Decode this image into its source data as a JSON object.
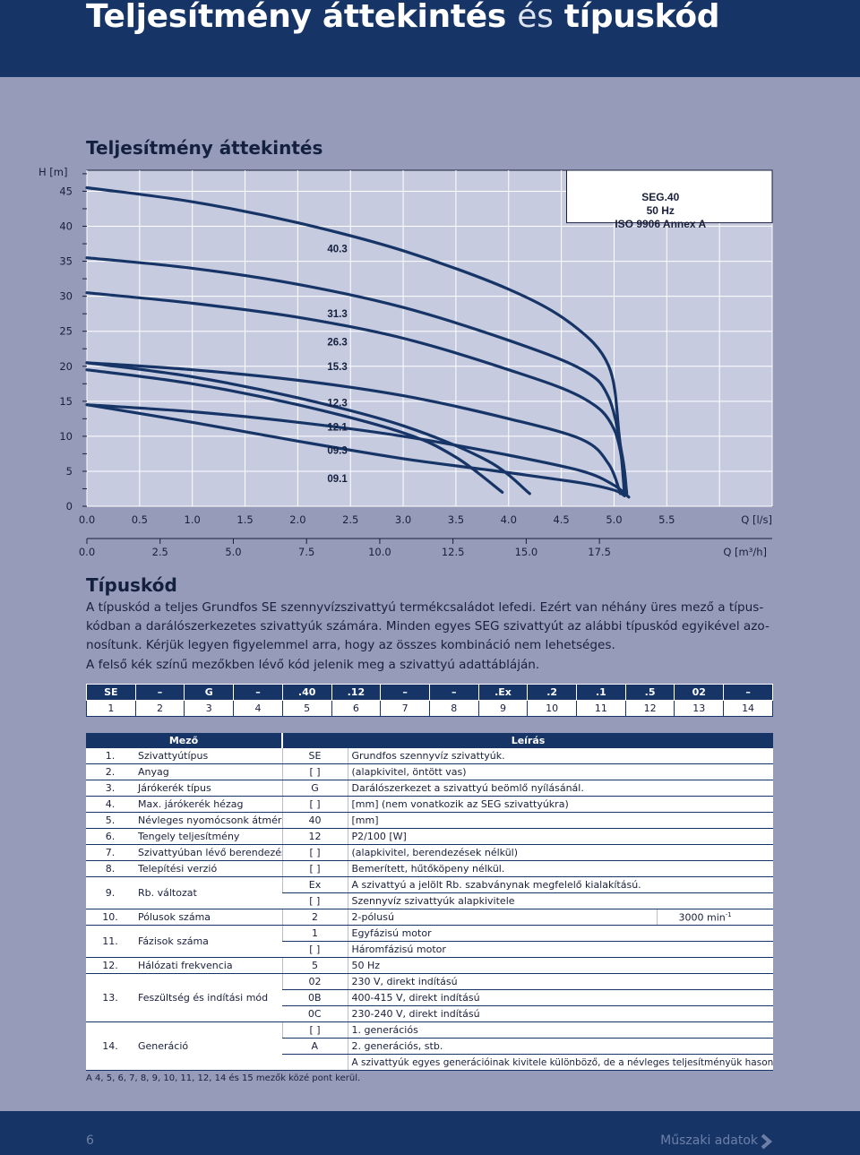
{
  "header": {
    "title_bold_1": "Teljesítmény áttekintés",
    "title_light": "és",
    "title_bold_2": "típuskód"
  },
  "performance": {
    "heading": "Teljesítmény áttekintés"
  },
  "chart_data": {
    "type": "line",
    "title": "",
    "ylabel": "H [m]",
    "xlabel": "Q [l/s]",
    "xlabel2": "Q [m³/h]",
    "ylim": [
      0,
      48
    ],
    "xlim": [
      0,
      6.5
    ],
    "y_ticks": [
      "0",
      "5",
      "10",
      "15",
      "20",
      "25",
      "30",
      "35",
      "40",
      "45"
    ],
    "x_ticks": [
      "0.0",
      "0.5",
      "1.0",
      "1.5",
      "2.0",
      "2.5",
      "3.0",
      "3.5",
      "4.0",
      "4.5",
      "5.0",
      "5.5"
    ],
    "x2_ticks": [
      "0.0",
      "2.5",
      "5.0",
      "7.5",
      "10.0",
      "12.5",
      "15.0",
      "17.5"
    ],
    "grid": true,
    "legend_box": [
      "SEG.40",
      "50 Hz",
      "ISO 9906 Annex A"
    ],
    "series": [
      {
        "name": "40.3",
        "x": [
          0,
          1,
          2,
          3,
          4,
          4.6,
          4.95,
          5.05,
          5.1
        ],
        "y": [
          45.5,
          43.5,
          40.5,
          36.5,
          31,
          26,
          20,
          10,
          1.5
        ]
      },
      {
        "name": "31.3",
        "x": [
          0,
          1,
          2,
          3,
          4,
          4.7,
          4.95,
          5.08,
          5.12
        ],
        "y": [
          35.5,
          34,
          31.7,
          28.4,
          23.7,
          19.5,
          15.5,
          7,
          1.8
        ]
      },
      {
        "name": "26.3",
        "x": [
          0,
          1,
          2,
          3,
          4,
          4.7,
          5.0,
          5.12
        ],
        "y": [
          30.5,
          29,
          27,
          24,
          19.5,
          15.5,
          11,
          2
        ]
      },
      {
        "name": "15.3",
        "x": [
          0,
          1,
          2,
          3,
          4,
          4.7,
          4.95,
          5.06
        ],
        "y": [
          20.5,
          19.5,
          18,
          15.8,
          12.5,
          9.5,
          6,
          1.8
        ]
      },
      {
        "name": "12.3",
        "x": [
          0,
          1,
          2,
          3,
          3.8,
          4.2
        ],
        "y": [
          20.5,
          18.5,
          15.5,
          11.5,
          6.5,
          1.8
        ]
      },
      {
        "name": "12.1",
        "x": [
          0,
          1,
          2,
          3,
          4,
          4.7,
          5.0,
          5.14
        ],
        "y": [
          14.5,
          13.5,
          12,
          10,
          7.3,
          5,
          3,
          1.3
        ]
      },
      {
        "name": "09.3",
        "x": [
          0,
          1,
          2,
          3,
          3.5,
          3.94
        ],
        "y": [
          19.5,
          17.5,
          14.5,
          10.5,
          7,
          2
        ]
      },
      {
        "name": "09.1",
        "x": [
          0,
          1,
          2,
          3,
          4,
          4.7,
          5.0,
          5.1
        ],
        "y": [
          14.5,
          12,
          9.3,
          6.8,
          4.8,
          3.3,
          2.3,
          1.5
        ]
      }
    ],
    "curve_labels": [
      "40.3",
      "31.3",
      "26.3",
      "15.3",
      "12.3",
      "12.1",
      "09.3",
      "09.1"
    ]
  },
  "typecode": {
    "heading": "Típuskód",
    "paragraph": [
      "A típuskód a teljes Grundfos SE szennyvízszivattyú termékcsaládot lefedi. Ezért van néhány üres mező a típus-",
      "kódban a darálószerkezetes szivattyúk számára. Minden egyes SEG szivattyút az alábbi típuskód egyikével azo-",
      "nosítunk. Kérjük legyen figyelemmel arra, hogy az összes kombináció nem lehetséges.",
      "A felső kék színű mezőkben lévő kód jelenik meg a szivattyú adattábláján."
    ],
    "codes": [
      "SE",
      "–",
      "G",
      "–",
      ".40",
      ".12",
      "–",
      "–",
      ".Ex",
      ".2",
      ".1",
      ".5",
      "02",
      "–"
    ],
    "numbers": [
      "1",
      "2",
      "3",
      "4",
      "5",
      "6",
      "7",
      "8",
      "9",
      "10",
      "11",
      "12",
      "13",
      "14"
    ]
  },
  "fields_table": {
    "header_field": "Mező",
    "header_desc": "Leírás",
    "rows": [
      {
        "no": "1.",
        "name": "Szivattyútípus",
        "lines": [
          {
            "code": "SE",
            "desc": "Grundfos szennyvíz szivattyúk."
          }
        ]
      },
      {
        "no": "2.",
        "name": "Anyag",
        "lines": [
          {
            "code": "[ ]",
            "desc": "(alapkivitel, öntött vas)"
          }
        ]
      },
      {
        "no": "3.",
        "name": "Járókerék típus",
        "lines": [
          {
            "code": "G",
            "desc": "Darálószerkezet a szivattyú beömlő nyílásánál."
          }
        ]
      },
      {
        "no": "4.",
        "name": "Max. járókerék hézag",
        "lines": [
          {
            "code": "[ ]",
            "desc": "[mm] (nem vonatkozik az SEG szivattyúkra)"
          }
        ]
      },
      {
        "no": "5.",
        "name": "Névleges nyomócsonk átmérő",
        "lines": [
          {
            "code": "40",
            "desc": "[mm]"
          }
        ]
      },
      {
        "no": "6.",
        "name": "Tengely teljesítmény",
        "lines": [
          {
            "code": "12",
            "desc": "P2/100 [W]"
          }
        ]
      },
      {
        "no": "7.",
        "name": "Szivattyúban lévő berendezés",
        "lines": [
          {
            "code": "[ ]",
            "desc": "(alapkivitel, berendezések nélkül)"
          }
        ]
      },
      {
        "no": "8.",
        "name": "Telepítési verzió",
        "lines": [
          {
            "code": "[ ]",
            "desc": "Bemerített, hűtőköpeny nélkül."
          }
        ]
      },
      {
        "no": "9.",
        "name": "Rb. változat",
        "lines": [
          {
            "code": "Ex",
            "desc": "A szivattyú a jelölt Rb. szabványnak megfelelő kialakítású."
          },
          {
            "code": "[ ]",
            "desc": "Szennyvíz szivattyúk alapkivitele"
          }
        ]
      },
      {
        "no": "10.",
        "name": "Pólusok száma",
        "lines": [
          {
            "code": "2",
            "desc": "2-pólusú",
            "extra": "3000 min"
          }
        ]
      },
      {
        "no": "11.",
        "name": "Fázisok száma",
        "lines": [
          {
            "code": "1",
            "desc": "Egyfázisú motor"
          },
          {
            "code": "[ ]",
            "desc": "Háromfázisú motor"
          }
        ]
      },
      {
        "no": "12.",
        "name": "Hálózati frekvencia",
        "lines": [
          {
            "code": "5",
            "desc": "50 Hz"
          }
        ]
      },
      {
        "no": "13.",
        "name": "Feszültség és indítási mód",
        "lines": [
          {
            "code": "02",
            "desc": "230 V, direkt indítású"
          },
          {
            "code": "0B",
            "desc": "400-415 V, direkt indítású"
          },
          {
            "code": "0C",
            "desc": "230-240 V, direkt indítású"
          }
        ]
      },
      {
        "no": "14.",
        "name": "Generáció",
        "lines": [
          {
            "code": "[ ]",
            "desc": "1. generációs"
          },
          {
            "code": "A",
            "desc": "2. generációs, stb."
          },
          {
            "code": "",
            "desc": "A szivattyúk egyes generációinak kivitele különböző, de a névleges teljesítményük hasonló."
          }
        ]
      }
    ],
    "rpm_superscript": "-1"
  },
  "footnote": "A 4, 5, 6, 7, 8, 9, 10, 11, 12, 14 és 15 mezők közé pont kerül.",
  "footer": {
    "page_number": "6",
    "section_name": "Műszaki adatok"
  },
  "colors": {
    "navy": "#163566",
    "page_bg": "#959bb9",
    "curve": "#163566"
  }
}
